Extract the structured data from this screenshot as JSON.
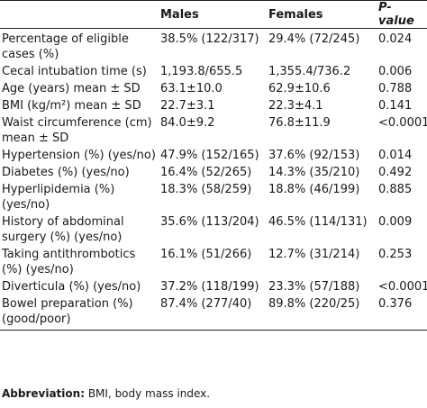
{
  "header": {
    "col0": "",
    "col1": "Males",
    "col2": "Females",
    "col3": "P-value"
  },
  "rows": [
    {
      "label": "Percentage of eligible cases (%)",
      "males": "38.5% (122/317)",
      "females": "29.4% (72/245)",
      "p": "0.024"
    },
    {
      "label": "Cecal intubation time (s)",
      "males": "1,193.8/655.5",
      "females": "1,355.4/736.2",
      "p": "0.006"
    },
    {
      "label": "Age (years) mean ± SD",
      "males": "63.1±10.0",
      "females": "62.9±10.6",
      "p": "0.788"
    },
    {
      "label": "BMI (kg/m²) mean ± SD",
      "males": "22.7±3.1",
      "females": "22.3±4.1",
      "p": "0.141"
    },
    {
      "label": "Waist circumference (cm) mean ± SD",
      "males": "84.0±9.2",
      "females": "76.8±11.9",
      "p": "<0.0001"
    },
    {
      "label": "Hypertension (%) (yes/no)",
      "males": "47.9% (152/165)",
      "females": "37.6% (92/153)",
      "p": "0.014"
    },
    {
      "label": "Diabetes (%) (yes/no)",
      "males": "16.4% (52/265)",
      "females": "14.3% (35/210)",
      "p": "0.492"
    },
    {
      "label": "Hyperlipidemia (%) (yes/no)",
      "males": "18.3% (58/259)",
      "females": "18.8% (46/199)",
      "p": "0.885"
    },
    {
      "label": "History of abdominal surgery (%) (yes/no)",
      "males": "35.6% (113/204)",
      "females": "46.5% (114/131)",
      "p": "0.009"
    },
    {
      "label": "Taking antithrombotics (%) (yes/no)",
      "males": "16.1% (51/266)",
      "females": "12.7% (31/214)",
      "p": "0.253"
    },
    {
      "label": "Diverticula (%) (yes/no)",
      "males": "37.2% (118/199)",
      "females": "23.3% (57/188)",
      "p": "<0.0001"
    },
    {
      "label": "Bowel preparation (%) (good/poor)",
      "males": "87.4% (277/40)",
      "females": "89.8% (220/25)",
      "p": "0.376"
    }
  ],
  "footnote": {
    "term": "Abbreviation:",
    "text": " BMI, body mass index."
  }
}
